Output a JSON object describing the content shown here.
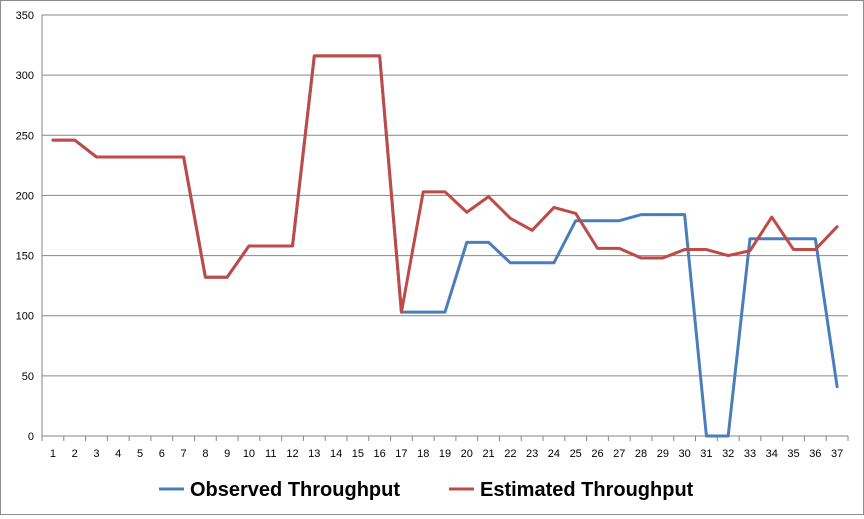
{
  "chart_data": {
    "type": "line",
    "title": "",
    "xlabel": "",
    "ylabel": "",
    "x": [
      1,
      2,
      3,
      4,
      5,
      6,
      7,
      8,
      9,
      10,
      11,
      12,
      13,
      14,
      15,
      16,
      17,
      18,
      19,
      20,
      21,
      22,
      23,
      24,
      25,
      26,
      27,
      28,
      29,
      30,
      31,
      32,
      33,
      34,
      35,
      36,
      37
    ],
    "ylim": [
      0,
      350
    ],
    "yticks": [
      0,
      50,
      100,
      150,
      200,
      250,
      300,
      350
    ],
    "grid": "horizontal",
    "legend": "bottom",
    "series": [
      {
        "name": "Observed Throughput",
        "color": "#4a7ebb",
        "values": [
          246,
          246,
          232,
          232,
          232,
          232,
          232,
          132,
          132,
          158,
          158,
          158,
          316,
          316,
          316,
          316,
          103,
          103,
          103,
          161,
          161,
          144,
          144,
          144,
          179,
          179,
          179,
          184,
          184,
          184,
          0,
          0,
          164,
          164,
          164,
          164,
          41
        ]
      },
      {
        "name": "Estimated Throughput",
        "color": "#be4b48",
        "values": [
          246,
          246,
          232,
          232,
          232,
          232,
          232,
          132,
          132,
          158,
          158,
          158,
          316,
          316,
          316,
          316,
          103,
          203,
          203,
          186,
          199,
          181,
          171,
          190,
          185,
          156,
          156,
          148,
          148,
          155,
          155,
          150,
          154,
          182,
          155,
          155,
          174
        ]
      }
    ]
  }
}
